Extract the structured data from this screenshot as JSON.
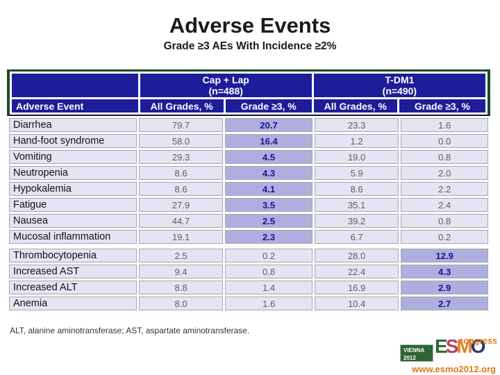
{
  "slide": {
    "title": "Adverse Events",
    "subtitle": "Grade ≥3 AEs With Incidence ≥2%",
    "footnote": "ALT, alanine aminotransferase; AST, aspartate aminotransferase."
  },
  "chart_data": {
    "type": "table",
    "title": "Adverse Events",
    "subtitle": "Grade ≥3 AEs With Incidence ≥2%",
    "group_headers": [
      {
        "name": "Cap + Lap",
        "n": "(n=488)"
      },
      {
        "name": "T-DM1",
        "n": "(n=490)"
      }
    ],
    "column_headers": [
      "Adverse Event",
      "All Grades, %",
      "Grade ≥3, %",
      "All Grades, %",
      "Grade ≥3, %"
    ],
    "sections": [
      {
        "highlight_value_index": 1,
        "rows": [
          {
            "event": "Diarrhea",
            "values": [
              "79.7",
              "20.7",
              "23.3",
              "1.6"
            ]
          },
          {
            "event": "Hand-foot syndrome",
            "values": [
              "58.0",
              "16.4",
              "1.2",
              "0.0"
            ]
          },
          {
            "event": "Vomiting",
            "values": [
              "29.3",
              "4.5",
              "19.0",
              "0.8"
            ]
          },
          {
            "event": "Neutropenia",
            "values": [
              "8.6",
              "4.3",
              "5.9",
              "2.0"
            ]
          },
          {
            "event": "Hypokalemia",
            "values": [
              "8.6",
              "4.1",
              "8.6",
              "2.2"
            ]
          },
          {
            "event": "Fatigue",
            "values": [
              "27.9",
              "3.5",
              "35.1",
              "2.4"
            ]
          },
          {
            "event": "Nausea",
            "values": [
              "44.7",
              "2.5",
              "39.2",
              "0.8"
            ]
          },
          {
            "event": "Mucosal inflammation",
            "values": [
              "19.1",
              "2.3",
              "6.7",
              "0.2"
            ]
          }
        ]
      },
      {
        "highlight_value_index": 3,
        "rows": [
          {
            "event": "Thrombocytopenia",
            "values": [
              "2.5",
              "0.2",
              "28.0",
              "12.9"
            ]
          },
          {
            "event": "Increased AST",
            "values": [
              "9.4",
              "0.8",
              "22.4",
              "4.3"
            ]
          },
          {
            "event": "Increased ALT",
            "values": [
              "8.8",
              "1.4",
              "16.9",
              "2.9"
            ]
          },
          {
            "event": "Anemia",
            "values": [
              "8.0",
              "1.6",
              "10.4",
              "2.7"
            ]
          }
        ]
      }
    ]
  },
  "logo": {
    "venue": "VIENNA",
    "year": "2012",
    "letters": [
      {
        "char": "E",
        "color": "#2e6b38"
      },
      {
        "char": "S",
        "color": "#b5415a"
      },
      {
        "char": "M",
        "color": "#e87e23"
      },
      {
        "char": "O",
        "color": "#2b3a70"
      }
    ],
    "congress": "congress",
    "url": "www.esmo2012.org"
  },
  "colors": {
    "header_bg": "#1d1d99",
    "header_text": "#ffffff",
    "header_border_green": "#1e4a26",
    "cell_bg": "#e4e4f5",
    "highlight_bg": "#afafdf",
    "highlight_text": "#16168a",
    "value_text": "#5c5c64",
    "esmo_orange": "#e87e23",
    "esmo_green": "#2e6b38",
    "esmo_red": "#b5415a",
    "esmo_navy": "#2b3a70",
    "url_orange": "#db7a17"
  }
}
